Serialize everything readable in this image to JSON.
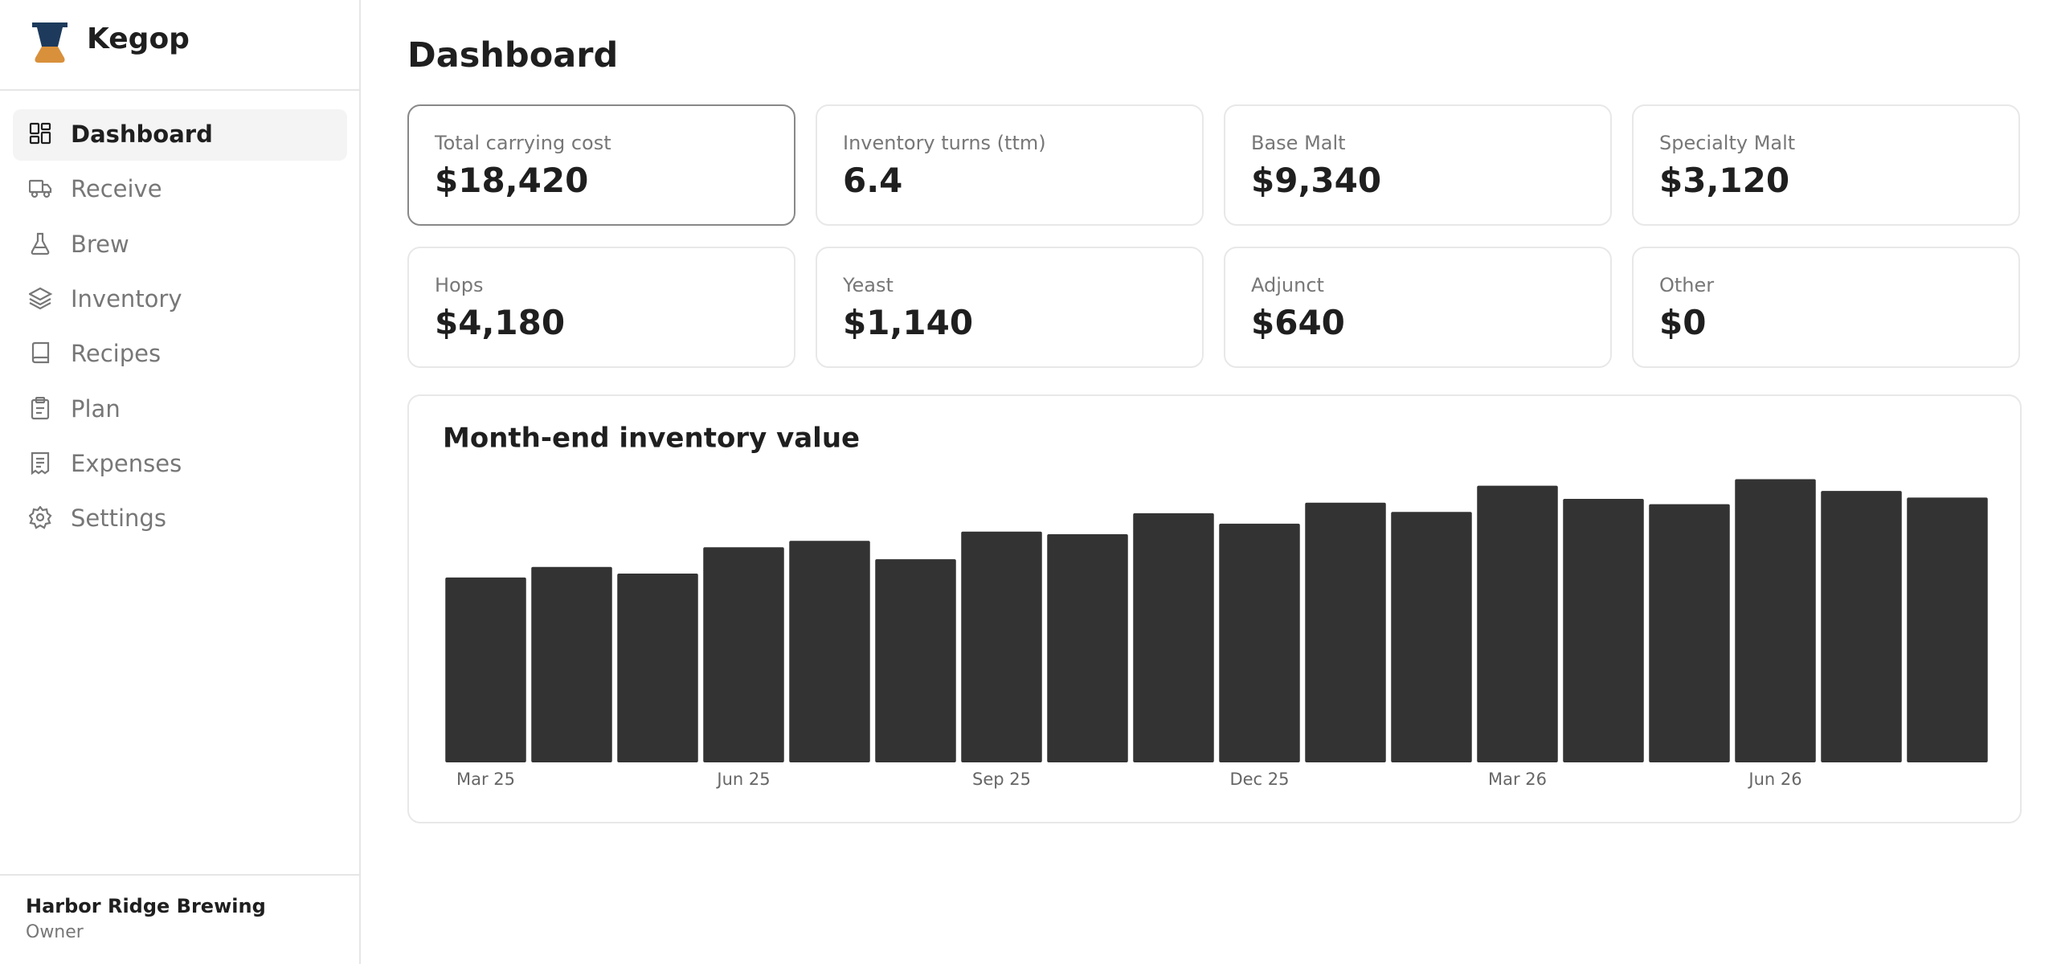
{
  "sidebar": {
    "brand": "Kegop",
    "nav": [
      "Dashboard",
      "Receive",
      "Brew",
      "Inventory",
      "Recipes",
      "Plan",
      "Expenses",
      "Settings"
    ],
    "org": {
      "name": "Harbor Ridge Brewing",
      "role": "Owner"
    }
  },
  "header": {
    "title": "Dashboard"
  },
  "cards": [
    {
      "label": "Total carrying cost",
      "value": "$18,420"
    },
    {
      "label": "Inventory turns (ttm)",
      "value": "6.4"
    },
    {
      "label": "Base Malt",
      "value": "$9,340"
    },
    {
      "label": "Specialty Malt",
      "value": "$3,120"
    },
    {
      "label": "Hops",
      "value": "$4,180"
    },
    {
      "label": "Yeast",
      "value": "$1,140"
    },
    {
      "label": "Adjunct",
      "value": "$640"
    },
    {
      "label": "Other",
      "value": "$0"
    }
  ],
  "chart_data": {
    "type": "bar",
    "title": "Month-end inventory value",
    "categories": [
      "Mar 25",
      null,
      null,
      "Jun 25",
      null,
      null,
      "Sep 25",
      null,
      null,
      "Dec 25",
      null,
      null,
      "Mar 26",
      null,
      null,
      "Jun 26",
      null,
      null
    ],
    "values": [
      12860,
      13590,
      13130,
      14960,
      15410,
      14130,
      16050,
      15870,
      17330,
      16600,
      18060,
      17420,
      19240,
      18330,
      17960,
      19700,
      18880,
      18420
    ],
    "color": "#333333",
    "ylim": [
      0,
      20340
    ]
  }
}
